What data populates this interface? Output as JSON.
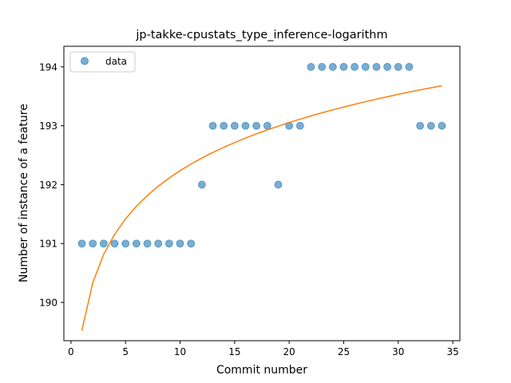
{
  "chart_data": {
    "type": "scatter",
    "title": "jp-takke-cpustats_type_inference-logarithm",
    "xlabel": "Commit number",
    "ylabel": "Number of instance of a feature",
    "xlim": [
      -0.65,
      35.65
    ],
    "ylim": [
      189.35,
      194.35
    ],
    "x_ticks": [
      0,
      5,
      10,
      15,
      20,
      25,
      30,
      35
    ],
    "y_ticks": [
      190,
      191,
      192,
      193,
      194
    ],
    "legend": {
      "position": "top-left",
      "label": "data"
    },
    "colors": {
      "scatter": "#1f77b4",
      "fit": "#ff7f0e"
    },
    "series": [
      {
        "name": "data",
        "kind": "scatter",
        "x": [
          1,
          2,
          3,
          4,
          5,
          6,
          7,
          8,
          9,
          10,
          11,
          12,
          13,
          14,
          15,
          16,
          17,
          18,
          19,
          20,
          21,
          22,
          23,
          24,
          25,
          26,
          27,
          28,
          29,
          30,
          31,
          32,
          33,
          34
        ],
        "y": [
          191,
          191,
          191,
          191,
          191,
          191,
          191,
          191,
          191,
          191,
          191,
          192,
          193,
          193,
          193,
          193,
          193,
          193,
          192,
          193,
          193,
          194,
          194,
          194,
          194,
          194,
          194,
          194,
          194,
          194,
          194,
          193,
          193,
          193
        ]
      },
      {
        "name": "logarithmic fit",
        "kind": "line",
        "x_range": [
          1,
          34
        ],
        "a": 189.52,
        "b": 1.18
      }
    ]
  }
}
